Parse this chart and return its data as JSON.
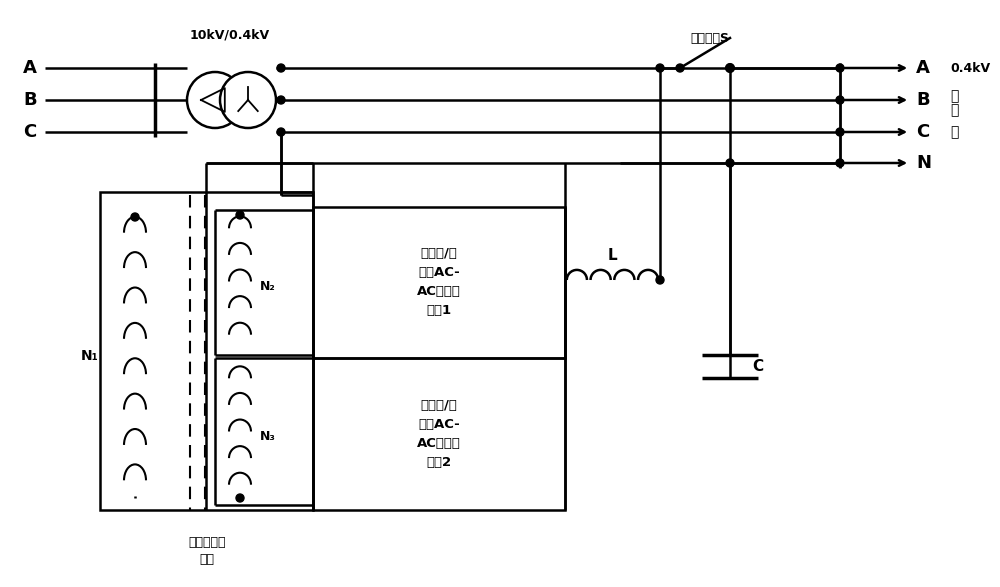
{
  "bg_color": "#ffffff",
  "lw": 1.8,
  "label_transformer": "10kV/0.4kV",
  "label_N1": "N₁",
  "label_N2": "N₂",
  "label_N3": "N₃",
  "label_L": "L",
  "label_C": "C",
  "label_bypass": "旁路开关S",
  "label_box1": "双降压/升\n压型AC-\nAC变换器\n模块1",
  "label_box2": "双降压/升\n压型AC-\nAC变换器\n模块2",
  "label_bottom1": "双分裂式变",
  "label_bottom2": "压器",
  "label_04kV": "0.4kV",
  "label_yong": "用",
  "label_hu": "户",
  "label_ce": "侧"
}
